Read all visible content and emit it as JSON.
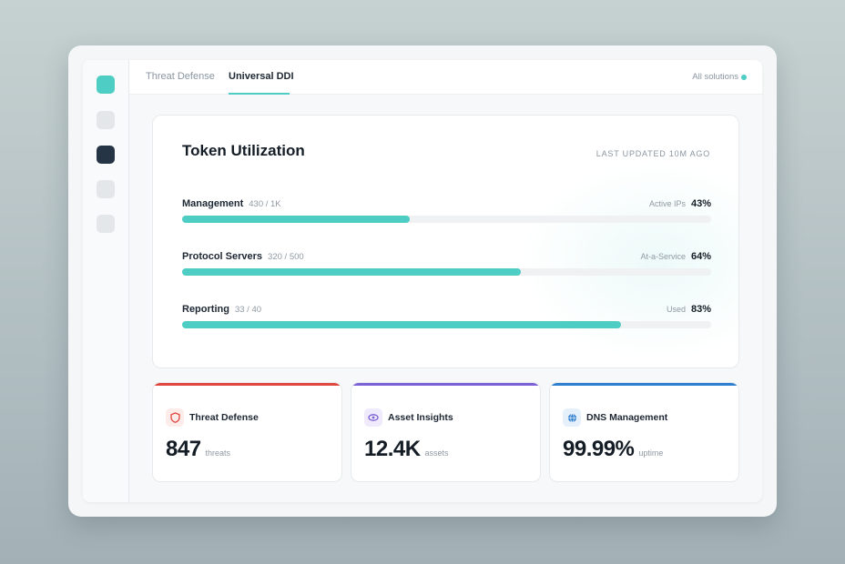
{
  "tabs": [
    {
      "label": "Threat Defense",
      "active": false
    },
    {
      "label": "Universal DDI",
      "active": true
    }
  ],
  "header": {
    "all_solutions": "All solutions"
  },
  "token_card": {
    "title": "Token Utilization",
    "last_updated": "LAST UPDATED 10M AGO",
    "rows": [
      {
        "label": "Management",
        "count": "430 / 1K",
        "metric": "Active IPs",
        "percent": "43%",
        "fill": 0.43
      },
      {
        "label": "Protocol Servers",
        "count": "320 / 500",
        "metric": "At-a-Service",
        "percent": "64%",
        "fill": 0.64
      },
      {
        "label": "Reporting",
        "count": "33 / 40",
        "metric": "Used",
        "percent": "83%",
        "fill": 0.83
      }
    ]
  },
  "stats": [
    {
      "title": "Threat Defense",
      "value": "847",
      "unit": "threats",
      "icon": "shield-icon",
      "accent": "#e0473f",
      "icon_bg": "#fdecea"
    },
    {
      "title": "Asset Insights",
      "value": "12.4K",
      "unit": "assets",
      "icon": "eye-icon",
      "accent": "#7b62d6",
      "icon_bg": "#efeafc"
    },
    {
      "title": "DNS Management",
      "value": "99.99%",
      "unit": "uptime",
      "icon": "globe-icon",
      "accent": "#2f7fd0",
      "icon_bg": "#e6f0fb"
    }
  ],
  "colors": {
    "accent": "#4ecdc4",
    "dark": "#263545"
  }
}
